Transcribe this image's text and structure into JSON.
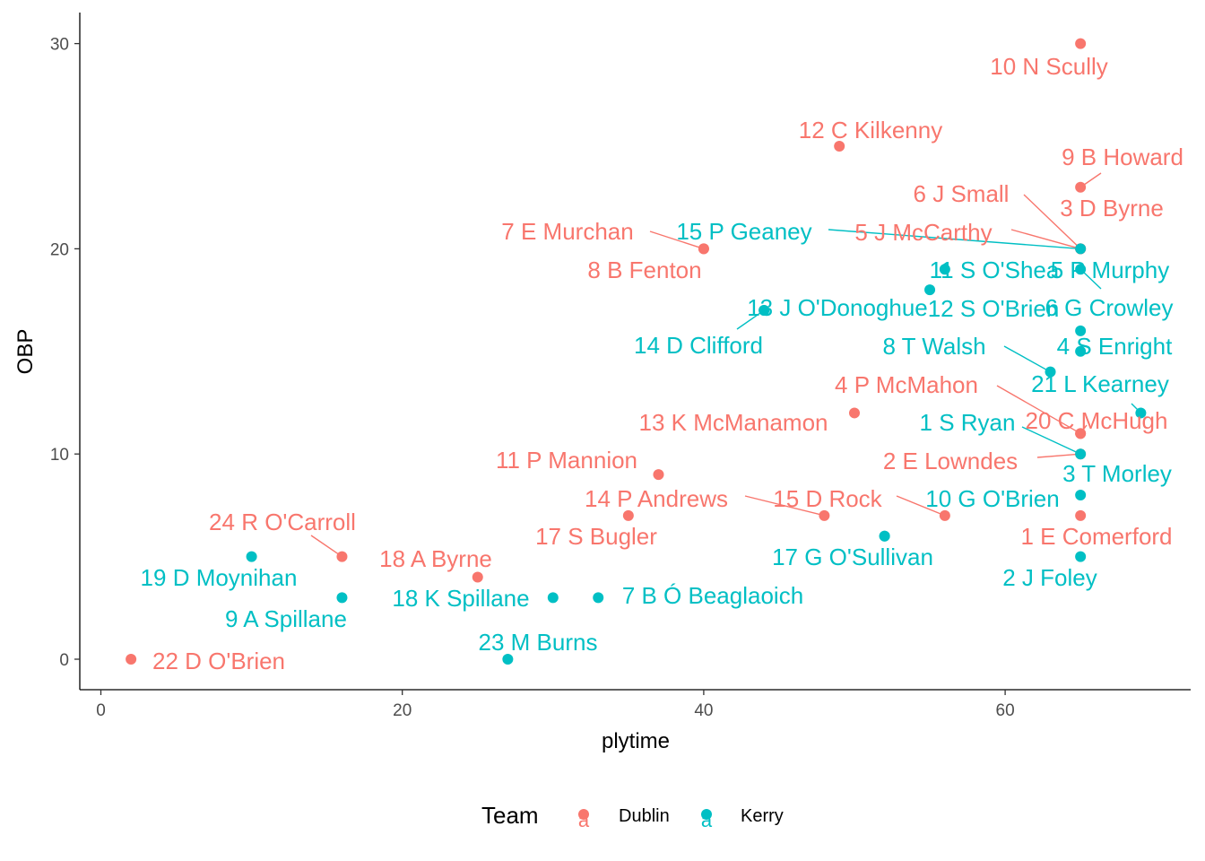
{
  "chart_data": {
    "type": "scatter",
    "xlabel": "plytime",
    "ylabel": "OBP",
    "xlim": [
      -1.5,
      72.5
    ],
    "ylim": [
      -1.5,
      31.5
    ],
    "x_ticks": [
      0,
      20,
      40,
      60
    ],
    "y_ticks": [
      0,
      10,
      20,
      30
    ],
    "grid": false,
    "legend": {
      "title": "Team",
      "position": "bottom",
      "glyph": "a",
      "entries": [
        {
          "name": "Dublin",
          "color": "#F8766D"
        },
        {
          "name": "Kerry",
          "color": "#00BFC4"
        }
      ]
    },
    "series": [
      {
        "name": "Dublin",
        "color": "#F8766D",
        "points": [
          {
            "x": 65,
            "y": 30,
            "label": "10  N Scully"
          },
          {
            "x": 49,
            "y": 25,
            "label": "12  C Kilkenny"
          },
          {
            "x": 65,
            "y": 23,
            "label": "9  B Howard"
          },
          {
            "x": 65,
            "y": 20,
            "label": "3  D Byrne"
          },
          {
            "x": 65,
            "y": 20,
            "label": "5  J McCarthy"
          },
          {
            "x": 65,
            "y": 20,
            "label": "6  J Small"
          },
          {
            "x": 40,
            "y": 20,
            "label": "7  E Murchan"
          },
          {
            "x": 40,
            "y": 20,
            "label": "8  B Fenton"
          },
          {
            "x": 50,
            "y": 12,
            "label": "13  K McManamon"
          },
          {
            "x": 65,
            "y": 11,
            "label": "20  C McHugh"
          },
          {
            "x": 65,
            "y": 11,
            "label": "4  P McMahon"
          },
          {
            "x": 65,
            "y": 10,
            "label": "2  E Lowndes"
          },
          {
            "x": 37,
            "y": 9,
            "label": "11 P Mannion"
          },
          {
            "x": 35,
            "y": 7,
            "label": "17  S Bugler"
          },
          {
            "x": 48,
            "y": 7,
            "label": "14  P Andrews"
          },
          {
            "x": 56,
            "y": 7,
            "label": "15  D Rock"
          },
          {
            "x": 65,
            "y": 7,
            "label": "1 E Comerford"
          },
          {
            "x": 16,
            "y": 5,
            "label": "24  R O'Carroll"
          },
          {
            "x": 25,
            "y": 4,
            "label": "18  A Byrne"
          },
          {
            "x": 2,
            "y": 0,
            "label": "22  D O'Brien"
          }
        ]
      },
      {
        "name": "Kerry",
        "color": "#00BFC4",
        "points": [
          {
            "x": 65,
            "y": 20,
            "label": "15  P Geaney"
          },
          {
            "x": 56,
            "y": 19,
            "label": "11  S O'Shea"
          },
          {
            "x": 65,
            "y": 19,
            "label": "5  P Murphy"
          },
          {
            "x": 55,
            "y": 18,
            "label": "12  S O'Brien"
          },
          {
            "x": 44,
            "y": 17,
            "label": "13  J O'Donoghue"
          },
          {
            "x": 44,
            "y": 17,
            "label": "14  D Clifford"
          },
          {
            "x": 65,
            "y": 16,
            "label": "6  G Crowley"
          },
          {
            "x": 65,
            "y": 15,
            "label": "4  S Enright"
          },
          {
            "x": 63,
            "y": 14,
            "label": "8  T Walsh"
          },
          {
            "x": 69,
            "y": 12,
            "label": "21  L Kearney"
          },
          {
            "x": 65,
            "y": 10,
            "label": "1 S Ryan"
          },
          {
            "x": 65,
            "y": 8,
            "label": "3  T Morley"
          },
          {
            "x": 52,
            "y": 6,
            "label": "10  G O'Brien"
          },
          {
            "x": 52,
            "y": 6,
            "label": "17  G O'Sullivan"
          },
          {
            "x": 65,
            "y": 5,
            "label": "2  J Foley"
          },
          {
            "x": 10,
            "y": 5,
            "label": "19 D Moynihan"
          },
          {
            "x": 16,
            "y": 3,
            "label": "9  A Spillane"
          },
          {
            "x": 30,
            "y": 3,
            "label": "18  K Spillane"
          },
          {
            "x": 33,
            "y": 3,
            "label": "7  B Ó Beaglaoich"
          },
          {
            "x": 27,
            "y": 0,
            "label": "23  M Burns"
          }
        ]
      }
    ]
  }
}
